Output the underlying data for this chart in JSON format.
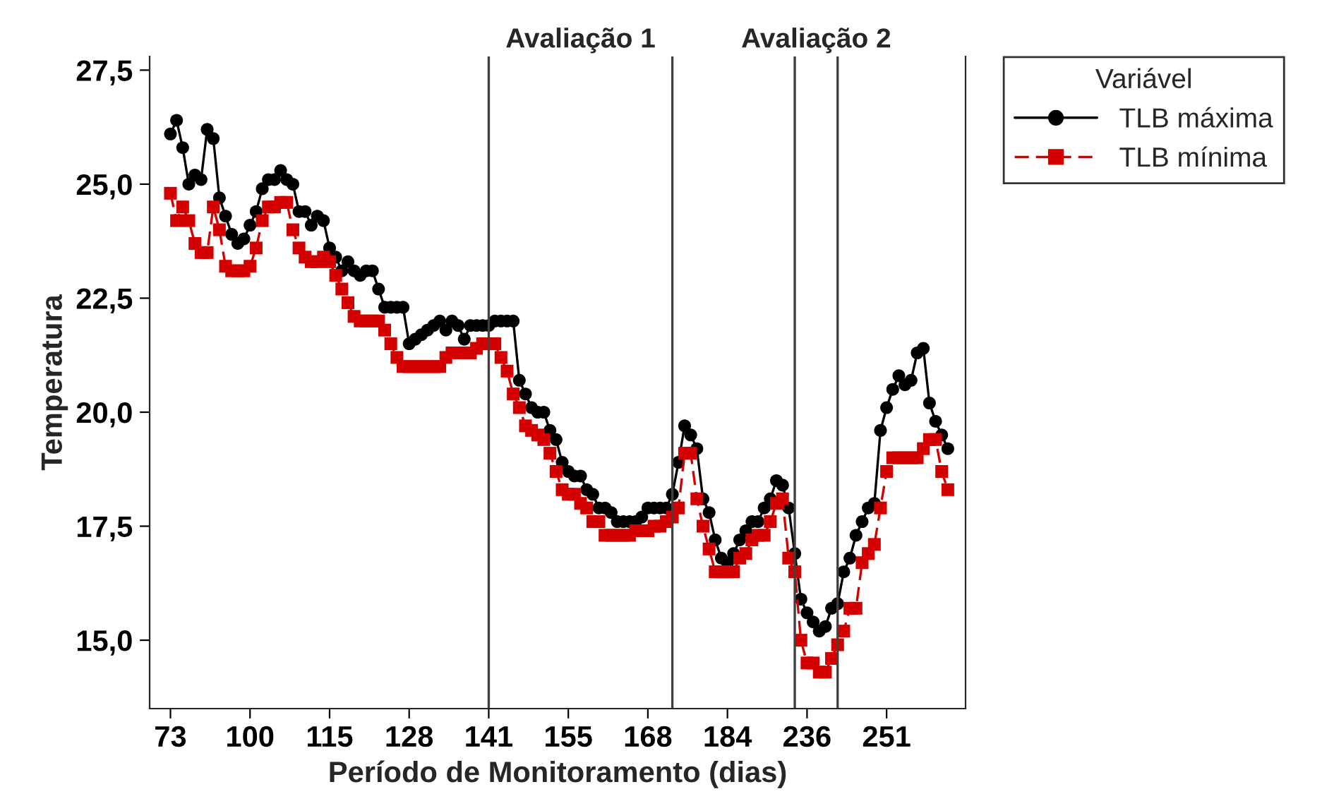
{
  "chart_data": {
    "type": "line",
    "xlabel": "Período de Monitoramento (dias)",
    "ylabel": "Temperatura",
    "legend_title": "Variável",
    "categories": [
      "73",
      null,
      null,
      null,
      null,
      null,
      null,
      null,
      null,
      null,
      null,
      null,
      null,
      "100",
      null,
      null,
      null,
      null,
      null,
      null,
      null,
      null,
      null,
      null,
      null,
      null,
      "115",
      null,
      null,
      null,
      null,
      null,
      null,
      null,
      null,
      null,
      null,
      null,
      null,
      "128",
      null,
      null,
      null,
      null,
      null,
      null,
      null,
      null,
      null,
      null,
      null,
      null,
      "141",
      null,
      null,
      null,
      null,
      null,
      null,
      null,
      null,
      null,
      null,
      null,
      null,
      "155",
      null,
      null,
      null,
      null,
      null,
      null,
      null,
      null,
      null,
      null,
      null,
      null,
      "168",
      null,
      null,
      null,
      null,
      null,
      null,
      null,
      null,
      null,
      null,
      null,
      null,
      "184",
      null,
      null,
      null,
      null,
      null,
      null,
      null,
      null,
      null,
      null,
      null,
      null,
      "236",
      null,
      null,
      null,
      null,
      null,
      null,
      null,
      null,
      null,
      null,
      null,
      null,
      "251",
      null,
      null,
      null,
      null,
      null,
      null,
      null,
      null,
      null,
      null
    ],
    "series": [
      {
        "name": "TLB máxima",
        "color": "#000000",
        "marker": "circle",
        "line_style": "solid",
        "values": [
          26.1,
          26.4,
          25.8,
          25.0,
          25.2,
          25.1,
          26.2,
          26.0,
          24.7,
          24.3,
          23.9,
          23.7,
          23.8,
          24.1,
          24.4,
          24.9,
          25.1,
          25.1,
          25.3,
          25.1,
          25.0,
          24.4,
          24.4,
          24.1,
          24.3,
          24.2,
          23.6,
          23.4,
          23.1,
          23.3,
          23.1,
          23.0,
          23.1,
          23.1,
          22.7,
          22.3,
          22.3,
          22.3,
          22.3,
          21.5,
          21.6,
          21.7,
          21.8,
          21.9,
          22.0,
          21.8,
          22.0,
          21.9,
          21.6,
          21.9,
          21.9,
          21.9,
          21.9,
          22.0,
          22.0,
          22.0,
          22.0,
          20.7,
          20.4,
          20.1,
          20.0,
          20.0,
          19.6,
          19.4,
          18.9,
          18.7,
          18.6,
          18.6,
          18.3,
          18.2,
          17.9,
          17.9,
          17.8,
          17.6,
          17.6,
          17.6,
          17.6,
          17.7,
          17.9,
          17.9,
          17.9,
          17.9,
          18.2,
          18.9,
          19.7,
          19.5,
          19.2,
          18.1,
          17.8,
          17.2,
          16.8,
          16.7,
          16.9,
          17.2,
          17.4,
          17.6,
          17.6,
          17.9,
          18.1,
          18.5,
          18.4,
          17.9,
          16.9,
          15.9,
          15.6,
          15.4,
          15.2,
          15.3,
          15.7,
          15.8,
          16.5,
          16.8,
          17.3,
          17.6,
          17.9,
          18.0,
          19.6,
          20.1,
          20.5,
          20.8,
          20.6,
          20.7,
          21.3,
          21.4,
          20.2,
          19.8,
          19.5,
          19.2
        ]
      },
      {
        "name": "TLB mínima",
        "color": "#d40000",
        "marker": "square",
        "line_style": "dashed",
        "values": [
          24.8,
          24.2,
          24.5,
          24.2,
          23.7,
          23.5,
          23.5,
          24.5,
          24.0,
          23.2,
          23.1,
          23.1,
          23.1,
          23.2,
          23.6,
          24.2,
          24.5,
          24.5,
          24.6,
          24.6,
          24.0,
          23.6,
          23.4,
          23.3,
          23.3,
          23.4,
          23.3,
          23.0,
          22.7,
          22.4,
          22.1,
          22.0,
          22.0,
          22.0,
          22.0,
          21.8,
          21.5,
          21.2,
          21.0,
          21.0,
          21.0,
          21.0,
          21.0,
          21.0,
          21.0,
          21.2,
          21.3,
          21.3,
          21.3,
          21.3,
          21.4,
          21.5,
          21.5,
          21.5,
          21.2,
          20.9,
          20.4,
          20.1,
          19.7,
          19.6,
          19.5,
          19.4,
          19.1,
          18.7,
          18.3,
          18.2,
          18.2,
          18.0,
          17.9,
          17.6,
          17.6,
          17.3,
          17.3,
          17.3,
          17.3,
          17.3,
          17.4,
          17.4,
          17.4,
          17.5,
          17.5,
          17.6,
          17.7,
          17.9,
          19.1,
          19.1,
          18.1,
          17.5,
          17.0,
          16.5,
          16.5,
          16.5,
          16.5,
          16.8,
          16.9,
          17.2,
          17.3,
          17.3,
          17.6,
          18.0,
          18.1,
          16.8,
          16.5,
          15.0,
          14.5,
          14.5,
          14.3,
          14.3,
          14.6,
          14.9,
          15.2,
          15.7,
          15.7,
          16.7,
          16.9,
          17.1,
          17.9,
          18.7,
          19.0,
          19.0,
          19.0,
          19.0,
          19.0,
          19.2,
          19.4,
          19.4,
          18.7,
          18.3
        ]
      }
    ],
    "ylim": [
      13.5,
      27.8
    ],
    "yticks": [
      {
        "value": 15.0,
        "label": "15,0"
      },
      {
        "value": 17.5,
        "label": "17,5"
      },
      {
        "value": 20.0,
        "label": "20,0"
      },
      {
        "value": 22.5,
        "label": "22,5"
      },
      {
        "value": 25.0,
        "label": "25,0"
      },
      {
        "value": 27.5,
        "label": "27,5"
      }
    ],
    "annotations": [
      "Avaliação 1",
      "Avaliação 2"
    ],
    "grid": false,
    "legend": "top right"
  }
}
